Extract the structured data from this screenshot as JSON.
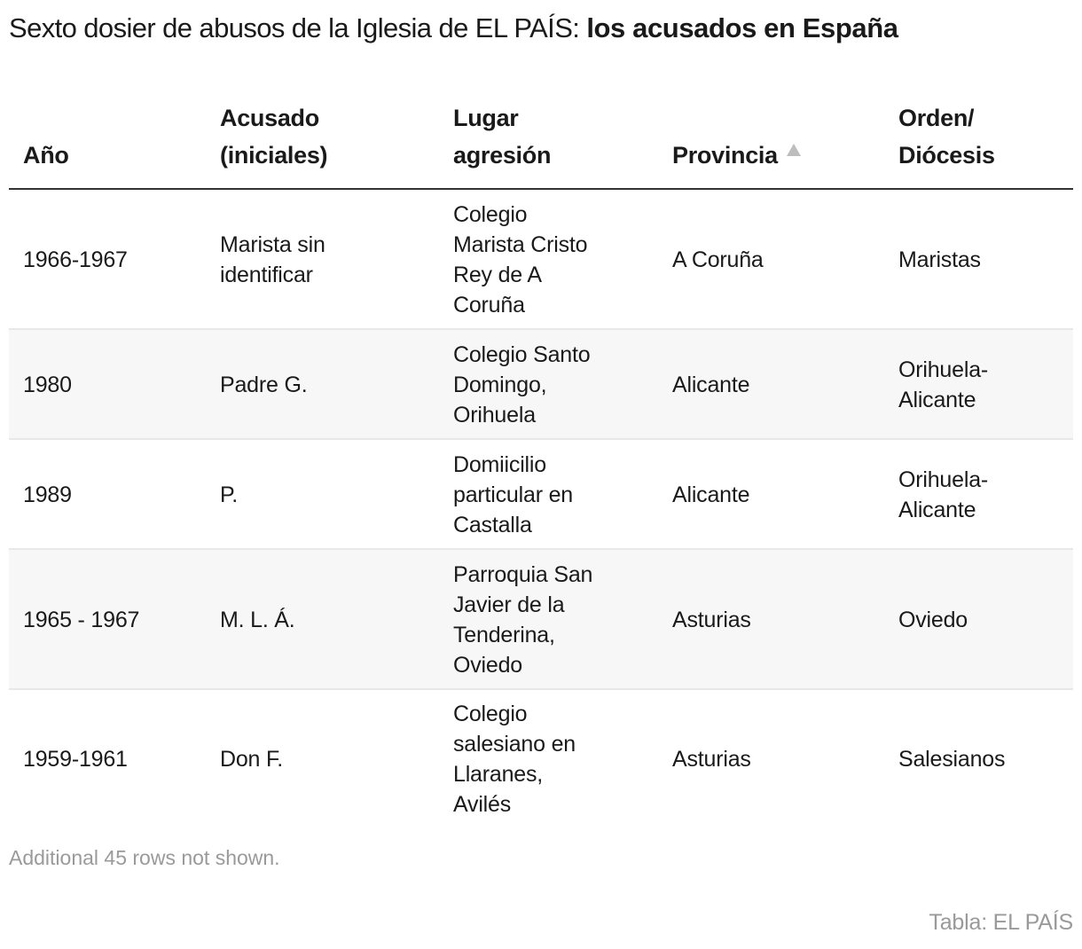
{
  "title": {
    "regular": "Sexto dosier de abusos de la Iglesia de EL PAÍS: ",
    "bold": "los acusados en España"
  },
  "table": {
    "columns": [
      {
        "lines": [
          "Año"
        ],
        "sortable": true
      },
      {
        "lines": [
          "Acusado",
          "(iniciales)"
        ],
        "sortable": true
      },
      {
        "lines": [
          "Lugar",
          "agresión"
        ],
        "sortable": true
      },
      {
        "lines": [
          "Provincia"
        ],
        "sortable": true,
        "sorted": "ascending",
        "sort_icon": "triangle-up-icon"
      },
      {
        "lines": [
          "Orden/",
          "Diócesis"
        ],
        "sortable": true
      }
    ],
    "rows": [
      {
        "year": [
          "1966-1967"
        ],
        "accused": [
          "Marista sin",
          "identificar"
        ],
        "place": [
          "Colegio",
          "Marista Cristo",
          "Rey de A",
          "Coruña"
        ],
        "province": [
          "A Coruña"
        ],
        "order": [
          "Maristas"
        ]
      },
      {
        "year": [
          "1980"
        ],
        "accused": [
          "Padre G."
        ],
        "place": [
          "Colegio Santo",
          "Domingo,",
          "Orihuela"
        ],
        "province": [
          "Alicante"
        ],
        "order": [
          "Orihuela-",
          "Alicante"
        ]
      },
      {
        "year": [
          "1989"
        ],
        "accused": [
          "P."
        ],
        "place": [
          "Domiicilio",
          "particular en",
          "Castalla"
        ],
        "province": [
          "Alicante"
        ],
        "order": [
          "Orihuela-",
          "Alicante"
        ]
      },
      {
        "year": [
          "1965 - 1967"
        ],
        "accused": [
          "M. L. Á."
        ],
        "place": [
          "Parroquia San",
          "Javier de la",
          "Tenderina,",
          "Oviedo"
        ],
        "province": [
          "Asturias"
        ],
        "order": [
          "Oviedo"
        ]
      },
      {
        "year": [
          "1959-1961"
        ],
        "accused": [
          "Don F."
        ],
        "place": [
          "Colegio",
          "salesiano en",
          "Llaranes,",
          "Avilés"
        ],
        "province": [
          "Asturias"
        ],
        "order": [
          "Salesianos"
        ]
      }
    ]
  },
  "footer": {
    "note": "Additional 45 rows not shown.",
    "source": "Tabla: EL PAÍS"
  },
  "colors": {
    "text": "#1a1a1a",
    "header_rule": "#333333",
    "row_separator": "#e8e8e8",
    "row_shade": "#f7f7f7",
    "muted": "#9a9a9a",
    "sort_icon": "#bdbdbd"
  }
}
